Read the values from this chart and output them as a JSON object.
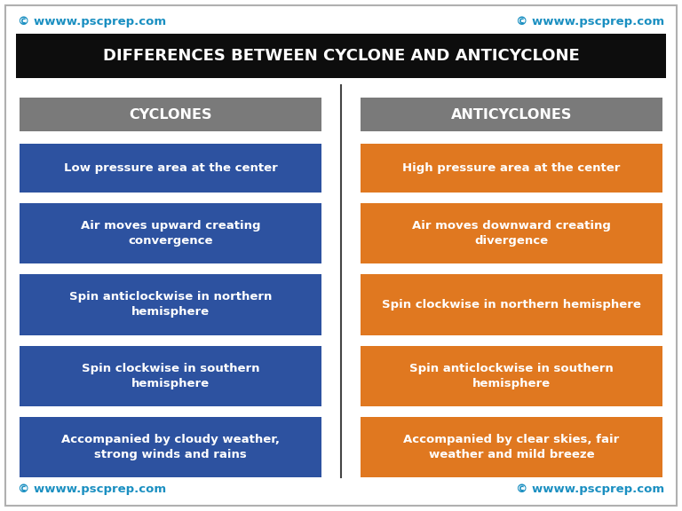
{
  "title": "DIFFERENCES BETWEEN CYCLONE AND ANTICYCLONE",
  "title_bg": "#0d0d0d",
  "title_color": "#ffffff",
  "watermark": "© wwww.pscprep.com",
  "watermark_color": "#1a8fc1",
  "bg_color": "#ffffff",
  "outer_border_color": "#b0b0b0",
  "divider_color": "#444444",
  "left_header": "CYCLONES",
  "right_header": "ANTICYCLONES",
  "header_bg": "#7a7a7a",
  "header_color": "#ffffff",
  "left_color": "#2d52a0",
  "right_color": "#e07820",
  "left_items": [
    "Low pressure area at the center",
    "Air moves upward creating\nconvergence",
    "Spin anticlockwise in northern\nhemisphere",
    "Spin clockwise in southern\nhemisphere",
    "Accompanied by cloudy weather,\nstrong winds and rains"
  ],
  "right_items": [
    "High pressure area at the center",
    "Air moves downward creating\ndivergence",
    "Spin clockwise in northern hemisphere",
    "Spin anticlockwise in southern\nhemisphere",
    "Accompanied by clear skies, fair\nweather and mild breeze"
  ],
  "figw": 7.68,
  "figh": 5.76,
  "dpi": 100
}
